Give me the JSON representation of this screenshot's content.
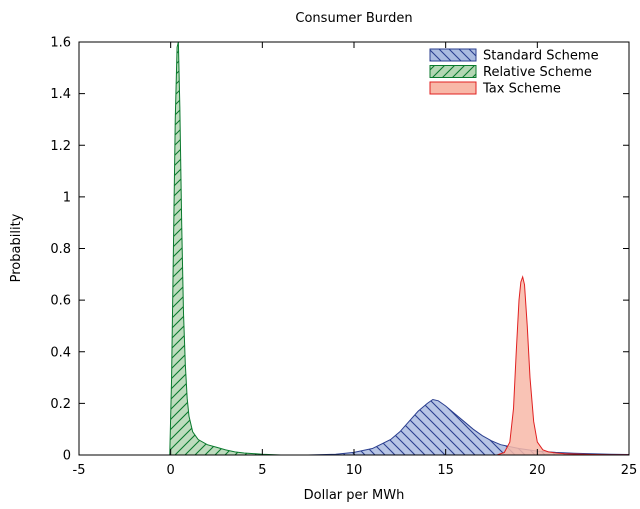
{
  "chart_data": {
    "type": "area",
    "title": "Consumer Burden",
    "xlabel": "Dollar per MWh",
    "ylabel": "Probability",
    "xlim": [
      -5,
      25
    ],
    "ylim": [
      0,
      1.6
    ],
    "xticks": [
      -5,
      0,
      5,
      10,
      15,
      20,
      25
    ],
    "xtick_labels": [
      "-5",
      "0",
      "5",
      "10",
      "15",
      "20",
      "25"
    ],
    "yticks": [
      0,
      0.2,
      0.4,
      0.6,
      0.8,
      1,
      1.2,
      1.4,
      1.6
    ],
    "ytick_labels": [
      "0",
      "0.2",
      "0.4",
      "0.6",
      "0.8",
      "1",
      "1.2",
      "1.4",
      "1.6"
    ],
    "legend_position": "top-right",
    "grid": false,
    "series": [
      {
        "name": "Standard Scheme",
        "fill": "#aabbe0",
        "stroke": "#2b3f8f",
        "hatch": "backslash",
        "x": [
          7.5,
          9,
          10,
          11,
          12,
          12.5,
          13,
          13.5,
          14,
          14.3,
          14.6,
          15,
          15.5,
          16,
          16.5,
          17,
          17.5,
          18,
          19,
          20,
          21,
          22,
          23,
          24,
          25
        ],
        "values": [
          0,
          0.003,
          0.01,
          0.025,
          0.06,
          0.09,
          0.13,
          0.17,
          0.2,
          0.215,
          0.21,
          0.19,
          0.16,
          0.13,
          0.1,
          0.075,
          0.055,
          0.04,
          0.025,
          0.015,
          0.01,
          0.007,
          0.005,
          0.003,
          0.002
        ]
      },
      {
        "name": "Relative Scheme",
        "fill": "#b3d6b3",
        "stroke": "#0b7a2e",
        "hatch": "slash",
        "x": [
          -0.05,
          0.05,
          0.15,
          0.25,
          0.35,
          0.42,
          0.5,
          0.6,
          0.7,
          0.8,
          0.9,
          1.0,
          1.2,
          1.5,
          2,
          2.5,
          3,
          3.5,
          4,
          5,
          6
        ],
        "values": [
          0,
          0.3,
          0.8,
          1.3,
          1.58,
          1.6,
          1.35,
          0.9,
          0.55,
          0.35,
          0.22,
          0.15,
          0.09,
          0.06,
          0.04,
          0.03,
          0.02,
          0.012,
          0.008,
          0.003,
          0
        ]
      },
      {
        "name": "Tax Scheme",
        "fill": "#f8b8a8",
        "stroke": "#e02020",
        "hatch": "none",
        "x": [
          17.8,
          18.2,
          18.5,
          18.7,
          18.85,
          19.0,
          19.1,
          19.2,
          19.3,
          19.45,
          19.6,
          19.8,
          20.0,
          20.3,
          20.6,
          21,
          21.5,
          22,
          23,
          24,
          25
        ],
        "values": [
          0,
          0.01,
          0.05,
          0.18,
          0.4,
          0.6,
          0.67,
          0.69,
          0.66,
          0.5,
          0.3,
          0.13,
          0.05,
          0.02,
          0.012,
          0.008,
          0.005,
          0.004,
          0.002,
          0.001,
          0.001
        ]
      }
    ]
  }
}
